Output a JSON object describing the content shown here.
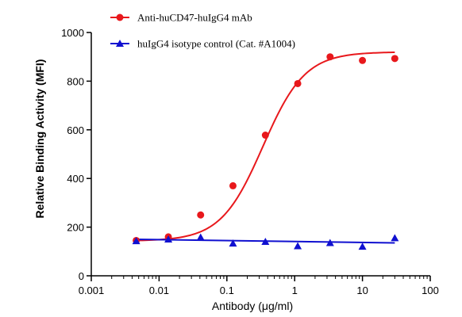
{
  "chart_data": {
    "type": "scatter",
    "xlabel": "Antibody (μg/ml)",
    "ylabel": "Relative Binding Activity (MFI)",
    "x_scale": "log",
    "xlim": [
      0.001,
      100
    ],
    "ylim": [
      0,
      1000
    ],
    "x_ticks": [
      "0.001",
      "0.01",
      "0.1",
      "1",
      "10",
      "100"
    ],
    "y_ticks": [
      "0",
      "200",
      "400",
      "600",
      "800",
      "1000"
    ],
    "legend_position": "top-left",
    "grid": false,
    "series": [
      {
        "name": "Anti-huCD47-huIgG4 mAb",
        "color": "#e8181c",
        "marker": "circle",
        "x": [
          0.0046,
          0.0137,
          0.041,
          0.123,
          0.37,
          1.11,
          3.33,
          10,
          30
        ],
        "y": [
          145,
          160,
          250,
          370,
          578,
          790,
          900,
          885,
          893
        ],
        "fit": {
          "bottom": 143,
          "top": 920,
          "ec50": 0.34,
          "hill": 1.4
        }
      },
      {
        "name": "huIgG4 isotype control (Cat. #A1004)",
        "color": "#1010d0",
        "marker": "triangle",
        "x": [
          0.0046,
          0.0137,
          0.041,
          0.123,
          0.37,
          1.11,
          3.33,
          10,
          30
        ],
        "y": [
          143,
          150,
          158,
          133,
          140,
          122,
          135,
          120,
          155
        ],
        "fit": {
          "start": 150,
          "end": 135
        }
      }
    ]
  }
}
